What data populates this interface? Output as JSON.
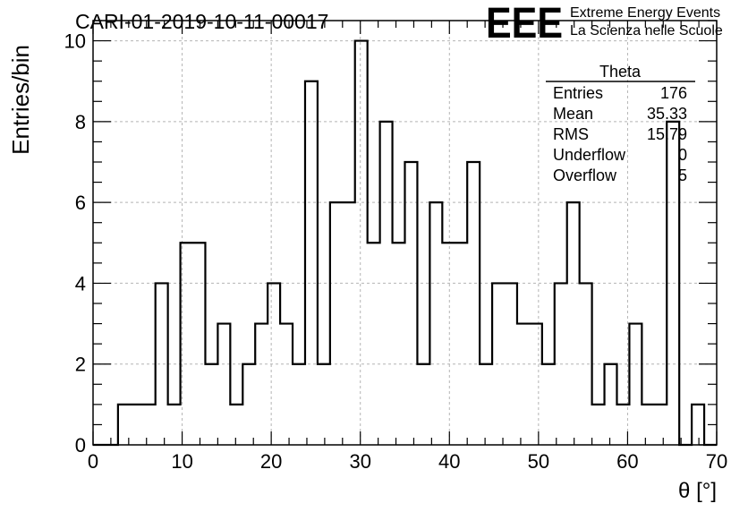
{
  "header": {
    "title": "CARI-01-2019-10-11-00017",
    "logo_letters": "EEE",
    "logo_line1": "Extreme Energy Events",
    "logo_line2": "La Scienza nelle Scuole",
    "logo_color": "#1a1aff"
  },
  "stats": {
    "name": "Theta",
    "rows": [
      {
        "label": "Entries",
        "value": "176"
      },
      {
        "label": "Mean",
        "value": "35.33"
      },
      {
        "label": "RMS",
        "value": "15.79"
      },
      {
        "label": "Underflow",
        "value": "0"
      },
      {
        "label": "Overflow",
        "value": "5"
      }
    ]
  },
  "chart_data": {
    "type": "histogram",
    "title": "CARI-01-2019-10-11-00017",
    "xlabel": "θ [°]",
    "ylabel": "Entries/bin",
    "xlim": [
      0,
      70
    ],
    "ylim": [
      0,
      10.5
    ],
    "x_ticks": [
      0,
      10,
      20,
      30,
      40,
      50,
      60,
      70
    ],
    "y_ticks": [
      0,
      2,
      4,
      6,
      8,
      10
    ],
    "grid": true,
    "bin_edges": [
      0.0,
      1.4,
      2.8,
      4.2,
      5.6,
      7.0,
      8.4,
      9.8,
      11.2,
      12.6,
      14.0,
      15.4,
      16.8,
      18.2,
      19.6,
      21.0,
      22.4,
      23.8,
      25.2,
      26.6,
      28.0,
      29.4,
      30.8,
      32.2,
      33.6,
      35.0,
      36.4,
      37.8,
      39.2,
      40.6,
      42.0,
      43.4,
      44.8,
      46.2,
      47.6,
      49.0,
      50.4,
      51.8,
      53.2,
      54.6,
      56.0,
      57.4,
      58.8,
      60.2,
      61.6,
      63.0,
      64.4,
      65.8,
      67.2,
      68.6,
      70.0
    ],
    "counts": [
      0,
      0,
      1,
      1,
      1,
      4,
      1,
      5,
      5,
      2,
      3,
      1,
      2,
      3,
      4,
      3,
      2,
      9,
      2,
      6,
      6,
      10,
      5,
      8,
      5,
      7,
      2,
      6,
      5,
      5,
      7,
      2,
      4,
      4,
      3,
      3,
      2,
      4,
      6,
      4,
      1,
      2,
      1,
      3,
      1,
      1,
      8,
      0,
      1,
      0
    ]
  }
}
